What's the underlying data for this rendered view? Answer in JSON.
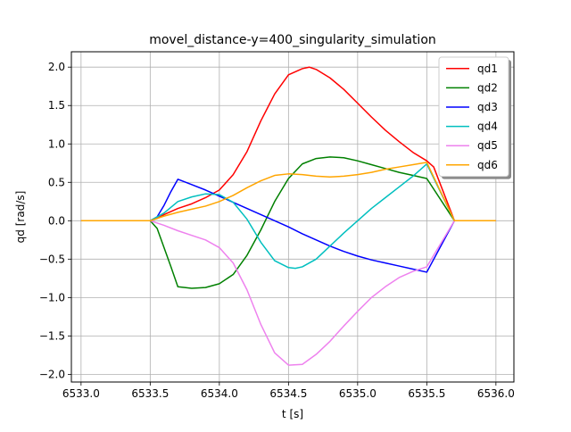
{
  "chart_data": {
    "type": "line",
    "title": "movel_distance-y=400_singularity_simulation",
    "xlabel": "t [s]",
    "ylabel": "qd [rad/s]",
    "xlim": [
      6532.93,
      6536.13
    ],
    "ylim": [
      -2.1,
      2.2
    ],
    "xticks": [
      6533.0,
      6533.5,
      6534.0,
      6534.5,
      6535.0,
      6535.5,
      6536.0
    ],
    "xtick_labels": [
      "6533.0",
      "6533.5",
      "6534.0",
      "6534.5",
      "6535.0",
      "6535.5",
      "6536.0"
    ],
    "yticks": [
      -2.0,
      -1.5,
      -1.0,
      -0.5,
      0.0,
      0.5,
      1.0,
      1.5,
      2.0
    ],
    "ytick_labels": [
      "−2.0",
      "−1.5",
      "−1.0",
      "−0.5",
      "0.0",
      "0.5",
      "1.0",
      "1.5",
      "2.0"
    ],
    "grid": true,
    "legend_position": "top-right",
    "series": [
      {
        "name": "qd1",
        "color": "#ff0000",
        "x": [
          6533.0,
          6533.5,
          6533.55,
          6533.6,
          6533.7,
          6533.8,
          6533.9,
          6534.0,
          6534.1,
          6534.2,
          6534.3,
          6534.4,
          6534.5,
          6534.6,
          6534.65,
          6534.7,
          6534.8,
          6534.9,
          6535.0,
          6535.1,
          6535.2,
          6535.3,
          6535.4,
          6535.5,
          6535.55,
          6535.7,
          6535.75,
          6536.0
        ],
        "y": [
          0.0,
          0.0,
          0.03,
          0.08,
          0.16,
          0.22,
          0.3,
          0.4,
          0.6,
          0.9,
          1.3,
          1.65,
          1.9,
          1.98,
          2.0,
          1.97,
          1.86,
          1.71,
          1.53,
          1.35,
          1.18,
          1.03,
          0.89,
          0.78,
          0.7,
          0.0,
          0.0,
          0.0
        ]
      },
      {
        "name": "qd2",
        "color": "#008000",
        "x": [
          6533.0,
          6533.5,
          6533.55,
          6533.6,
          6533.65,
          6533.7,
          6533.8,
          6533.9,
          6534.0,
          6534.1,
          6534.2,
          6534.3,
          6534.4,
          6534.5,
          6534.6,
          6534.7,
          6534.8,
          6534.9,
          6535.0,
          6535.1,
          6535.2,
          6535.3,
          6535.4,
          6535.5,
          6535.7,
          6535.75,
          6536.0
        ],
        "y": [
          0.0,
          0.0,
          -0.1,
          -0.35,
          -0.6,
          -0.86,
          -0.88,
          -0.87,
          -0.82,
          -0.7,
          -0.45,
          -0.12,
          0.25,
          0.55,
          0.74,
          0.81,
          0.83,
          0.82,
          0.78,
          0.73,
          0.68,
          0.63,
          0.59,
          0.55,
          0.0,
          0.0,
          0.0
        ]
      },
      {
        "name": "qd3",
        "color": "#0000ff",
        "x": [
          6533.0,
          6533.5,
          6533.55,
          6533.6,
          6533.65,
          6533.7,
          6533.8,
          6533.9,
          6534.0,
          6534.1,
          6534.2,
          6534.3,
          6534.4,
          6534.5,
          6534.6,
          6534.7,
          6534.8,
          6534.9,
          6535.0,
          6535.1,
          6535.2,
          6535.3,
          6535.4,
          6535.5,
          6535.7,
          6535.75,
          6536.0
        ],
        "y": [
          0.0,
          0.0,
          0.05,
          0.2,
          0.38,
          0.54,
          0.47,
          0.4,
          0.32,
          0.24,
          0.16,
          0.08,
          0.0,
          -0.08,
          -0.17,
          -0.25,
          -0.33,
          -0.4,
          -0.46,
          -0.51,
          -0.55,
          -0.59,
          -0.63,
          -0.67,
          0.0,
          0.0,
          0.0
        ]
      },
      {
        "name": "qd4",
        "color": "#00bfbf",
        "x": [
          6533.0,
          6533.5,
          6533.6,
          6533.7,
          6533.8,
          6533.9,
          6534.0,
          6534.1,
          6534.2,
          6534.3,
          6534.4,
          6534.5,
          6534.55,
          6534.6,
          6534.7,
          6534.8,
          6534.9,
          6535.0,
          6535.1,
          6535.2,
          6535.3,
          6535.4,
          6535.5,
          6535.7,
          6535.75,
          6536.0
        ],
        "y": [
          0.0,
          0.0,
          0.1,
          0.25,
          0.31,
          0.35,
          0.34,
          0.24,
          0.02,
          -0.28,
          -0.52,
          -0.61,
          -0.62,
          -0.6,
          -0.5,
          -0.33,
          -0.16,
          0.0,
          0.16,
          0.3,
          0.44,
          0.58,
          0.74,
          0.0,
          0.0,
          0.0
        ]
      },
      {
        "name": "qd5",
        "color": "#ee82ee",
        "x": [
          6533.0,
          6533.5,
          6533.6,
          6533.7,
          6533.8,
          6533.9,
          6534.0,
          6534.1,
          6534.2,
          6534.3,
          6534.4,
          6534.5,
          6534.6,
          6534.7,
          6534.8,
          6534.9,
          6535.0,
          6535.1,
          6535.2,
          6535.3,
          6535.4,
          6535.5,
          6535.7,
          6535.75,
          6536.0
        ],
        "y": [
          0.0,
          0.0,
          -0.06,
          -0.13,
          -0.19,
          -0.25,
          -0.35,
          -0.55,
          -0.9,
          -1.35,
          -1.72,
          -1.88,
          -1.87,
          -1.74,
          -1.57,
          -1.37,
          -1.18,
          -1.0,
          -0.86,
          -0.74,
          -0.66,
          -0.6,
          0.0,
          0.0,
          0.0
        ]
      },
      {
        "name": "qd6",
        "color": "#ffa500",
        "x": [
          6533.0,
          6533.5,
          6533.6,
          6533.7,
          6533.8,
          6533.9,
          6534.0,
          6534.1,
          6534.2,
          6534.3,
          6534.4,
          6534.5,
          6534.6,
          6534.7,
          6534.8,
          6534.9,
          6535.0,
          6535.1,
          6535.2,
          6535.3,
          6535.4,
          6535.5,
          6535.7,
          6535.75,
          6536.0
        ],
        "y": [
          0.0,
          0.0,
          0.06,
          0.11,
          0.15,
          0.19,
          0.25,
          0.33,
          0.43,
          0.52,
          0.59,
          0.61,
          0.6,
          0.58,
          0.57,
          0.58,
          0.6,
          0.63,
          0.67,
          0.7,
          0.73,
          0.76,
          0.0,
          0.0,
          0.0
        ]
      }
    ]
  }
}
